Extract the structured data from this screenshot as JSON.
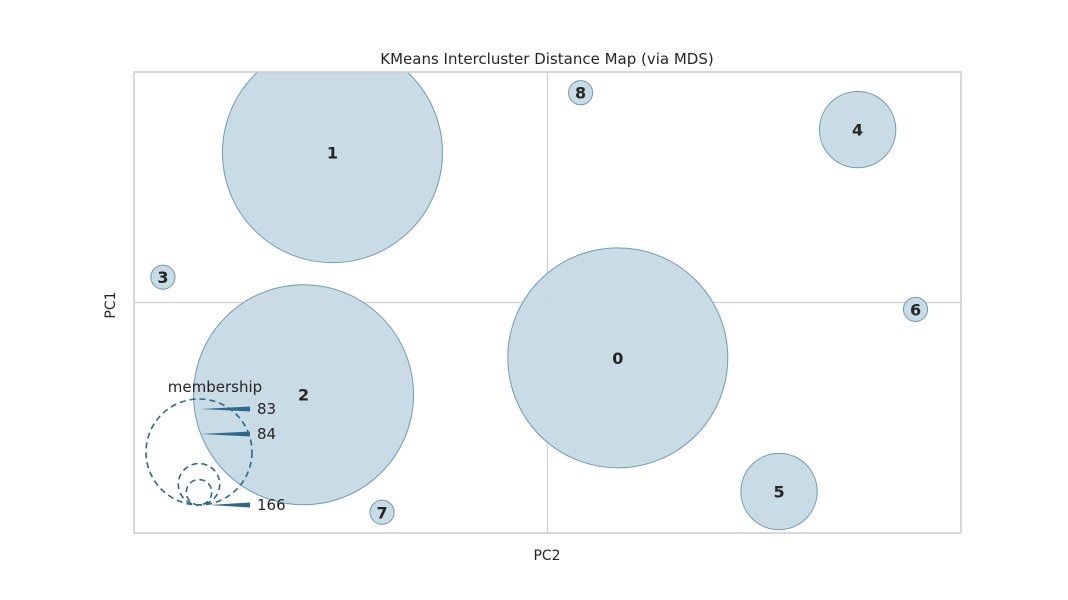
{
  "chart_data": {
    "type": "scatter",
    "title": "KMeans Intercluster Distance Map (via MDS)",
    "xlabel": "PC2",
    "ylabel": "PC1",
    "grid": "on",
    "xlim": [
      -1,
      1
    ],
    "ylim": [
      -1,
      1
    ],
    "clusters": [
      {
        "label": "0",
        "x": 0.17,
        "y": -0.24,
        "size": 166
      },
      {
        "label": "1",
        "x": -0.52,
        "y": 0.65,
        "size": 166
      },
      {
        "label": "2",
        "x": -0.59,
        "y": -0.4,
        "size": 166
      },
      {
        "label": "3",
        "x": -0.93,
        "y": 0.11,
        "size": 2
      },
      {
        "label": "4",
        "x": 0.75,
        "y": 0.75,
        "size": 20
      },
      {
        "label": "5",
        "x": 0.56,
        "y": -0.82,
        "size": 20
      },
      {
        "label": "6",
        "x": 0.89,
        "y": -0.03,
        "size": 2
      },
      {
        "label": "7",
        "x": -0.4,
        "y": -0.91,
        "size": 2
      },
      {
        "label": "8",
        "x": 0.08,
        "y": 0.91,
        "size": 2
      }
    ],
    "legend": {
      "title": "membership",
      "placement": "bottom-left",
      "entries": [
        "83",
        "84",
        "166"
      ]
    },
    "colors": {
      "fill": "#c6d9e3",
      "edge": "#6e9cb5",
      "legend": "#2b6a8e",
      "grid": "#d0d0d0",
      "frame": "#cccccc"
    }
  }
}
